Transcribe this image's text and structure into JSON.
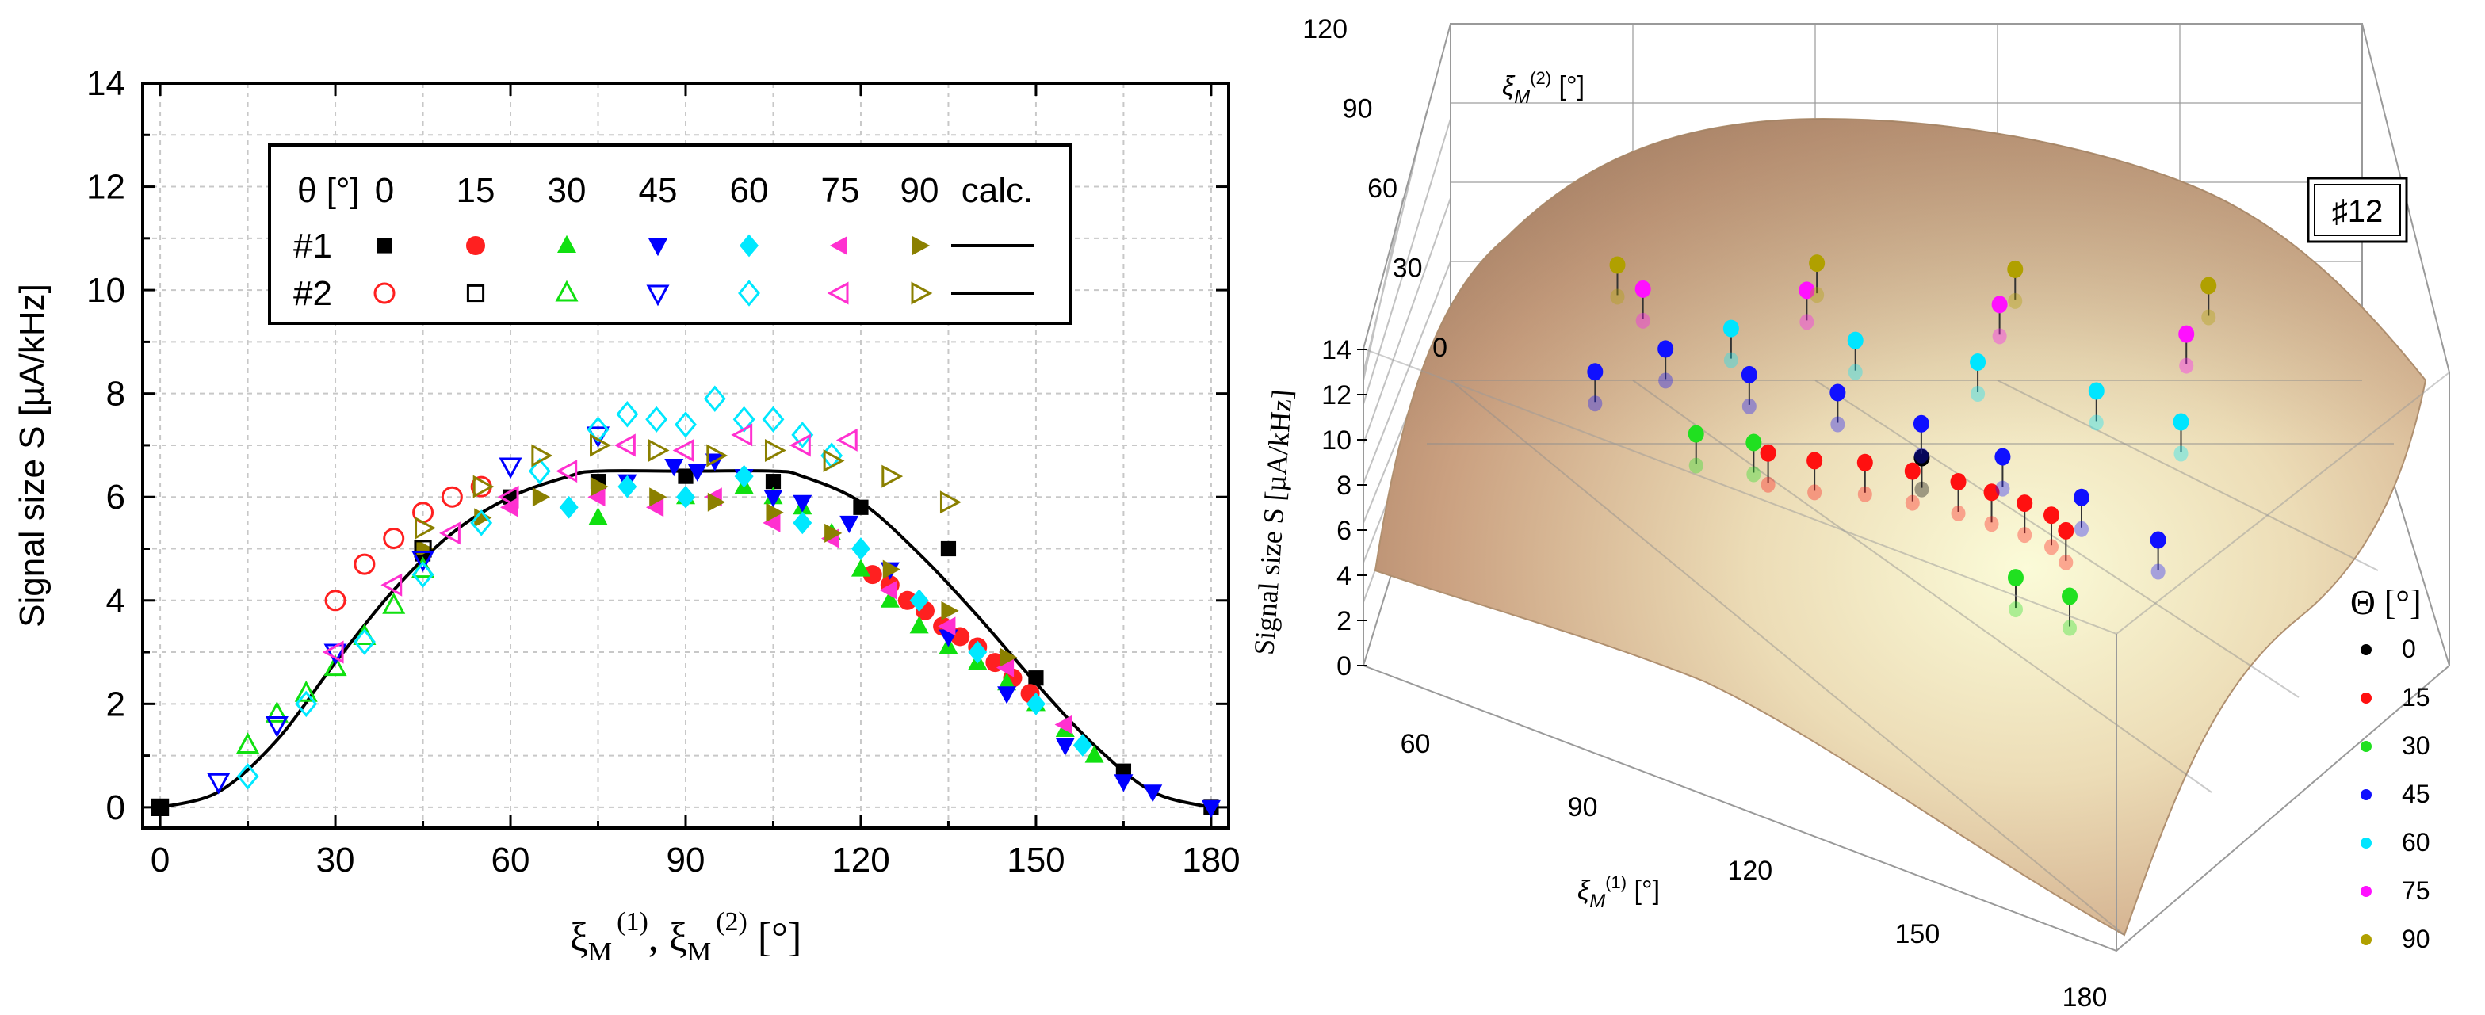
{
  "chart_data": [
    {
      "type": "scatter",
      "panel": "left",
      "xlabel": "ξM(1), ξM(2) [°]",
      "xlabel_parts": {
        "xi": "ξ",
        "sub": "M",
        "sup1": "(1)",
        "sep": ", ",
        "sup2": "(2)",
        "unit": " [°]"
      },
      "ylabel": "Signal size S [µA/kHz]",
      "xlim": [
        -3,
        183
      ],
      "ylim": [
        -0.4,
        14
      ],
      "x_ticks": [
        0,
        30,
        60,
        90,
        120,
        150,
        180
      ],
      "y_ticks": [
        0,
        2,
        4,
        6,
        8,
        10,
        12,
        14
      ],
      "grid": true,
      "legend": {
        "placement": "top-center",
        "header": "θ [°]",
        "columns": [
          "0",
          "15",
          "30",
          "45",
          "60",
          "75",
          "90",
          "calc."
        ],
        "rows": [
          "#1",
          "#2"
        ]
      },
      "series": [
        {
          "name": "#1 θ=0°",
          "marker": "square-filled",
          "color": "#000000",
          "x": [
            0,
            45,
            60,
            75,
            90,
            105,
            120,
            135,
            150,
            165,
            180
          ],
          "y": [
            0,
            4.9,
            6.0,
            6.3,
            6.4,
            6.3,
            5.8,
            5.0,
            2.5,
            0.7,
            0
          ]
        },
        {
          "name": "#1 θ=15°",
          "marker": "circle-filled",
          "color": "#ff2020",
          "x": [
            122,
            125,
            128,
            131,
            134,
            137,
            140,
            143,
            146,
            149
          ],
          "y": [
            4.5,
            4.3,
            4.0,
            3.8,
            3.5,
            3.3,
            3.1,
            2.8,
            2.5,
            2.2
          ]
        },
        {
          "name": "#1 θ=30°",
          "marker": "triangle-up-filled",
          "color": "#10e010",
          "x": [
            75,
            90,
            100,
            105,
            110,
            115,
            120,
            125,
            130,
            135,
            140,
            145,
            150,
            155,
            160
          ],
          "y": [
            5.6,
            6.0,
            6.2,
            6.0,
            5.8,
            5.3,
            4.6,
            4.0,
            3.5,
            3.1,
            2.8,
            2.4,
            2.0,
            1.5,
            1.0
          ]
        },
        {
          "name": "#1 θ=45°",
          "marker": "triangle-down-filled",
          "color": "#0000ff",
          "x": [
            80,
            88,
            92,
            95,
            100,
            105,
            110,
            118,
            125,
            135,
            145,
            155,
            165,
            170,
            180
          ],
          "y": [
            6.3,
            6.6,
            6.5,
            6.7,
            6.4,
            6.0,
            5.9,
            5.5,
            4.6,
            3.3,
            2.2,
            1.2,
            0.5,
            0.3,
            0
          ]
        },
        {
          "name": "#1 θ=60°",
          "marker": "diamond-filled",
          "color": "#00e8ff",
          "x": [
            70,
            80,
            90,
            100,
            110,
            120,
            130,
            140,
            150,
            158
          ],
          "y": [
            5.8,
            6.2,
            6.0,
            6.4,
            5.5,
            5.0,
            4.0,
            3.0,
            2.0,
            1.2
          ]
        },
        {
          "name": "#1 θ=75°",
          "marker": "triangle-left-filled",
          "color": "#ff30d0",
          "x": [
            60,
            75,
            85,
            95,
            105,
            115,
            125,
            135,
            145,
            155
          ],
          "y": [
            5.8,
            6.0,
            5.8,
            6.0,
            5.5,
            5.2,
            4.2,
            3.5,
            2.7,
            1.6
          ]
        },
        {
          "name": "#1 θ=90°",
          "marker": "triangle-right-filled",
          "color": "#8b8000",
          "x": [
            45,
            55,
            65,
            75,
            85,
            95,
            105,
            115,
            125,
            135,
            145
          ],
          "y": [
            5.0,
            5.6,
            6.0,
            6.2,
            6.0,
            5.9,
            5.7,
            5.3,
            4.6,
            3.8,
            2.9
          ]
        },
        {
          "name": "#2 θ=0°",
          "marker": "circle-open",
          "color": "#ff2020",
          "x": [
            30,
            35,
            40,
            45,
            50,
            55
          ],
          "y": [
            4.0,
            4.7,
            5.2,
            5.7,
            6.0,
            6.2
          ]
        },
        {
          "name": "#2 θ=15°",
          "marker": "square-open",
          "color": "#000000",
          "x": [
            0,
            45
          ],
          "y": [
            0,
            5.0
          ]
        },
        {
          "name": "#2 θ=30°",
          "marker": "triangle-up-open",
          "color": "#10e010",
          "x": [
            15,
            20,
            25,
            30,
            35,
            40,
            45
          ],
          "y": [
            1.2,
            1.8,
            2.2,
            2.7,
            3.3,
            3.9,
            4.6
          ]
        },
        {
          "name": "#2 θ=45°",
          "marker": "triangle-down-open",
          "color": "#0000ff",
          "x": [
            10,
            20,
            30,
            45,
            60,
            75
          ],
          "y": [
            0.5,
            1.6,
            3.0,
            4.8,
            6.6,
            7.2
          ]
        },
        {
          "name": "#2 θ=60°",
          "marker": "diamond-open",
          "color": "#00e8ff",
          "x": [
            15,
            25,
            35,
            45,
            55,
            65,
            75,
            80,
            85,
            90,
            95,
            100,
            105,
            110,
            115
          ],
          "y": [
            0.6,
            2.0,
            3.2,
            4.5,
            5.5,
            6.5,
            7.3,
            7.6,
            7.5,
            7.4,
            7.9,
            7.5,
            7.5,
            7.2,
            6.8
          ]
        },
        {
          "name": "#2 θ=75°",
          "marker": "triangle-left-open",
          "color": "#ff30d0",
          "x": [
            30,
            40,
            50,
            60,
            70,
            80,
            90,
            100,
            110,
            118
          ],
          "y": [
            3.0,
            4.3,
            5.3,
            6.0,
            6.5,
            7.0,
            6.9,
            7.2,
            7.0,
            7.1
          ]
        },
        {
          "name": "#2 θ=90°",
          "marker": "triangle-right-open",
          "color": "#8b8000",
          "x": [
            45,
            55,
            65,
            75,
            85,
            95,
            105,
            115,
            125,
            135
          ],
          "y": [
            5.4,
            6.2,
            6.8,
            7.0,
            6.9,
            6.8,
            6.9,
            6.7,
            6.4,
            5.9
          ]
        }
      ],
      "calc_curve": {
        "name": "calc.",
        "x": [
          0,
          10,
          20,
          30,
          40,
          50,
          60,
          70,
          75,
          90,
          105,
          110,
          120,
          130,
          140,
          150,
          160,
          170,
          180
        ],
        "y": [
          0,
          0.3,
          1.3,
          2.8,
          4.2,
          5.3,
          6.0,
          6.4,
          6.5,
          6.5,
          6.5,
          6.4,
          5.9,
          4.9,
          3.7,
          2.4,
          1.2,
          0.3,
          0
        ]
      }
    },
    {
      "type": "surface3d",
      "panel": "right",
      "badge": "♯12",
      "zlabel": "Signal size S [µA/kHz]",
      "x_label": {
        "base": "ξ",
        "sub": "M",
        "sup": "(1)",
        "unit": " [°]"
      },
      "y_label": {
        "base": "ξ",
        "sub": "M",
        "sup": "(2)",
        "unit": " [°]"
      },
      "x_ticks": [
        60,
        90,
        120,
        150,
        180
      ],
      "y_ticks": [
        0,
        30,
        60,
        90,
        120
      ],
      "z_ticks": [
        0,
        2,
        4,
        6,
        8,
        10,
        12,
        14
      ],
      "legend": {
        "title": "Θ [°]",
        "placement": "right",
        "entries": [
          {
            "label": "0",
            "color": "#000000"
          },
          {
            "label": "15",
            "color": "#ff1010"
          },
          {
            "label": "30",
            "color": "#20e020"
          },
          {
            "label": "45",
            "color": "#1010ff"
          },
          {
            "label": "60",
            "color": "#00e5ff"
          },
          {
            "label": "75",
            "color": "#ff10ff"
          },
          {
            "label": "90",
            "color": "#b0a000"
          }
        ]
      },
      "points": [
        {
          "theta": "0",
          "x1": 128,
          "x2": 62,
          "s": 8.6
        },
        {
          "theta": "15",
          "x1": 104,
          "x2": 58,
          "s": 8.2
        },
        {
          "theta": "15",
          "x1": 112,
          "x2": 56,
          "s": 8.6
        },
        {
          "theta": "15",
          "x1": 120,
          "x2": 57,
          "s": 8.8
        },
        {
          "theta": "15",
          "x1": 128,
          "x2": 56,
          "s": 9.0
        },
        {
          "theta": "15",
          "x1": 136,
          "x2": 54,
          "s": 9.3
        },
        {
          "theta": "15",
          "x1": 142,
          "x2": 52,
          "s": 9.5
        },
        {
          "theta": "15",
          "x1": 148,
          "x2": 50,
          "s": 9.7
        },
        {
          "theta": "15",
          "x1": 153,
          "x2": 48,
          "s": 9.8
        },
        {
          "theta": "15",
          "x1": 156,
          "x2": 46,
          "s": 9.6
        },
        {
          "theta": "30",
          "x1": 90,
          "x2": 70,
          "s": 6.5
        },
        {
          "theta": "30",
          "x1": 100,
          "x2": 66,
          "s": 7.2
        },
        {
          "theta": "30",
          "x1": 150,
          "x2": 38,
          "s": 8.4
        },
        {
          "theta": "30",
          "x1": 160,
          "x2": 35,
          "s": 8.8
        },
        {
          "theta": "45",
          "x1": 70,
          "x2": 95,
          "s": 5.2
        },
        {
          "theta": "45",
          "x1": 80,
          "x2": 100,
          "s": 6.0
        },
        {
          "theta": "45",
          "x1": 95,
          "x2": 88,
          "s": 7.0
        },
        {
          "theta": "45",
          "x1": 110,
          "x2": 82,
          "s": 7.6
        },
        {
          "theta": "45",
          "x1": 125,
          "x2": 74,
          "s": 8.0
        },
        {
          "theta": "45",
          "x1": 140,
          "x2": 66,
          "s": 8.5
        },
        {
          "theta": "45",
          "x1": 155,
          "x2": 58,
          "s": 8.8
        },
        {
          "theta": "45",
          "x1": 170,
          "x2": 50,
          "s": 9.2
        },
        {
          "theta": "60",
          "x1": 90,
          "x2": 100,
          "s": 7.5
        },
        {
          "theta": "60",
          "x1": 110,
          "x2": 95,
          "s": 8.2
        },
        {
          "theta": "60",
          "x1": 130,
          "x2": 90,
          "s": 8.5
        },
        {
          "theta": "60",
          "x1": 150,
          "x2": 84,
          "s": 8.8
        },
        {
          "theta": "60",
          "x1": 165,
          "x2": 78,
          "s": 9.0
        },
        {
          "theta": "75",
          "x1": 75,
          "x2": 110,
          "s": 8.0
        },
        {
          "theta": "75",
          "x1": 100,
          "x2": 108,
          "s": 8.6
        },
        {
          "theta": "75",
          "x1": 130,
          "x2": 104,
          "s": 9.0
        },
        {
          "theta": "75",
          "x1": 160,
          "x2": 98,
          "s": 9.2
        },
        {
          "theta": "90",
          "x1": 70,
          "x2": 118,
          "s": 8.2
        },
        {
          "theta": "90",
          "x1": 100,
          "x2": 116,
          "s": 8.8
        },
        {
          "theta": "90",
          "x1": 130,
          "x2": 114,
          "s": 9.0
        },
        {
          "theta": "90",
          "x1": 160,
          "x2": 110,
          "s": 9.2
        }
      ]
    }
  ]
}
